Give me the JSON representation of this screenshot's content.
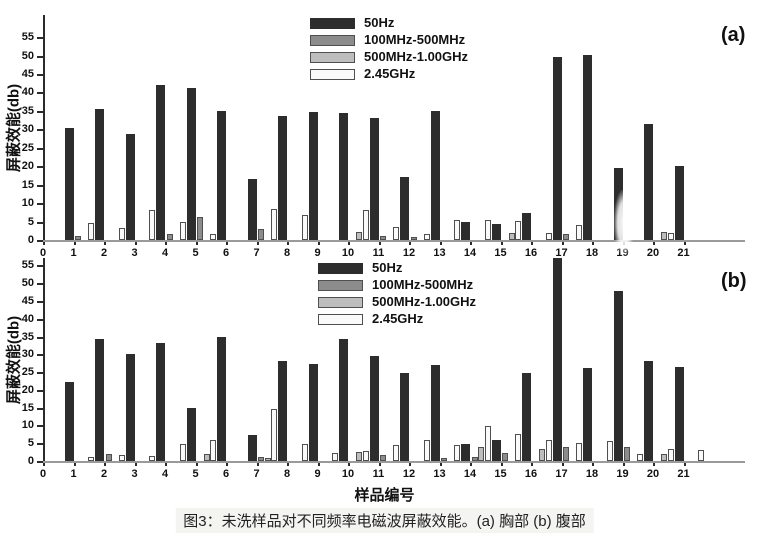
{
  "figure": {
    "caption": "图3：未洗样品对不同频率电磁波屏蔽效能。(a) 胸部 (b) 腹部",
    "xlabel": "样品编号"
  },
  "chart_data": [
    {
      "type": "bar",
      "panel_label": "(a)",
      "title": "",
      "ylabel": "屏蔽效能(db)",
      "xlabel": "样品编号",
      "ylim": [
        0,
        55
      ],
      "yticks": [
        0,
        5,
        10,
        15,
        20,
        25,
        30,
        35,
        40,
        45,
        50,
        55
      ],
      "xticks": [
        0,
        1,
        2,
        3,
        4,
        5,
        6,
        7,
        8,
        9,
        10,
        11,
        12,
        13,
        14,
        15,
        16,
        17,
        18,
        19,
        20,
        21
      ],
      "categories": [
        1,
        2,
        3,
        4,
        5,
        6,
        7,
        8,
        9,
        10,
        11,
        12,
        13,
        14,
        15,
        16,
        17,
        18,
        19,
        20,
        21
      ],
      "grid": false,
      "legend_position": "upper-center-right",
      "series": [
        {
          "name": "50Hz",
          "color": "#2d2d2d",
          "values": [
            30.3,
            35.5,
            28.7,
            42,
            41.2,
            35,
            16.5,
            33.5,
            34.8,
            34.5,
            33,
            17.2,
            35,
            5,
            4.3,
            7.3,
            49.5,
            50,
            19.5,
            31.5,
            20
          ]
        },
        {
          "name": "100MHz-500MHz",
          "color": "#8c8c8c",
          "values": [
            1,
            0,
            0,
            1.7,
            6.3,
            0,
            3,
            0,
            0,
            0,
            1.2,
            0.9,
            0,
            0,
            0,
            0,
            1.5,
            0,
            0,
            0,
            0
          ]
        },
        {
          "name": "500MHz-1.00GHz",
          "color": "#bdbdbd",
          "values": [
            0,
            0,
            0,
            0,
            0,
            0,
            0,
            0,
            0,
            2.3,
            0,
            0,
            0,
            0,
            1.9,
            0,
            0,
            0,
            0,
            2.3,
            0
          ]
        },
        {
          "name": "2.45GHz",
          "color": "#fafafa",
          "values": [
            4.7,
            3.2,
            8.1,
            4.9,
            1.5,
            0,
            8.3,
            6.7,
            0,
            8.1,
            3.6,
            1.6,
            5.5,
            5.3,
            5.1,
            1.8,
            4,
            0,
            0,
            2,
            0
          ]
        }
      ]
    },
    {
      "type": "bar",
      "panel_label": "(b)",
      "title": "",
      "ylabel": "屏蔽效能(db)",
      "xlabel": "样品编号",
      "ylim": [
        0,
        55
      ],
      "yticks": [
        0,
        5,
        10,
        15,
        20,
        25,
        30,
        35,
        40,
        45,
        50,
        55
      ],
      "xticks": [
        0,
        1,
        2,
        3,
        4,
        5,
        6,
        7,
        8,
        9,
        10,
        11,
        12,
        13,
        14,
        15,
        16,
        17,
        18,
        19,
        20,
        21
      ],
      "categories": [
        1,
        2,
        3,
        4,
        5,
        6,
        7,
        8,
        9,
        10,
        11,
        12,
        13,
        14,
        15,
        16,
        17,
        18,
        19,
        20,
        21
      ],
      "grid": false,
      "legend_position": "upper-center-right",
      "series": [
        {
          "name": "50Hz",
          "color": "#2d2d2d",
          "values": [
            22.3,
            34.2,
            30,
            33.2,
            14.8,
            35,
            7.4,
            28.2,
            27.3,
            34.3,
            29.5,
            24.8,
            27,
            4.8,
            5.9,
            24.7,
            57,
            26.3,
            47.8,
            28,
            26.5
          ]
        },
        {
          "name": "100MHz-500MHz",
          "color": "#8c8c8c",
          "values": [
            0,
            2,
            0,
            0,
            0,
            0,
            1.1,
            0,
            0,
            0,
            1.7,
            0,
            0.9,
            1,
            2.3,
            0,
            3.8,
            0,
            3.9,
            0,
            0
          ]
        },
        {
          "name": "500MHz-1.00GHz",
          "color": "#bdbdbd",
          "values": [
            0,
            0,
            0,
            0,
            1.9,
            0,
            0.9,
            0,
            0,
            2.5,
            0,
            0,
            0,
            4,
            0,
            3.5,
            0,
            0,
            0,
            2,
            0
          ]
        },
        {
          "name": "2.45GHz",
          "color": "#fafafa",
          "values": [
            1.2,
            1.8,
            1.5,
            4.8,
            5.8,
            0,
            14.7,
            4.9,
            2.2,
            2.8,
            4.4,
            5.8,
            4.6,
            9.9,
            7.7,
            6,
            5,
            5.5,
            1.9,
            3.4,
            3.2
          ]
        }
      ]
    }
  ]
}
